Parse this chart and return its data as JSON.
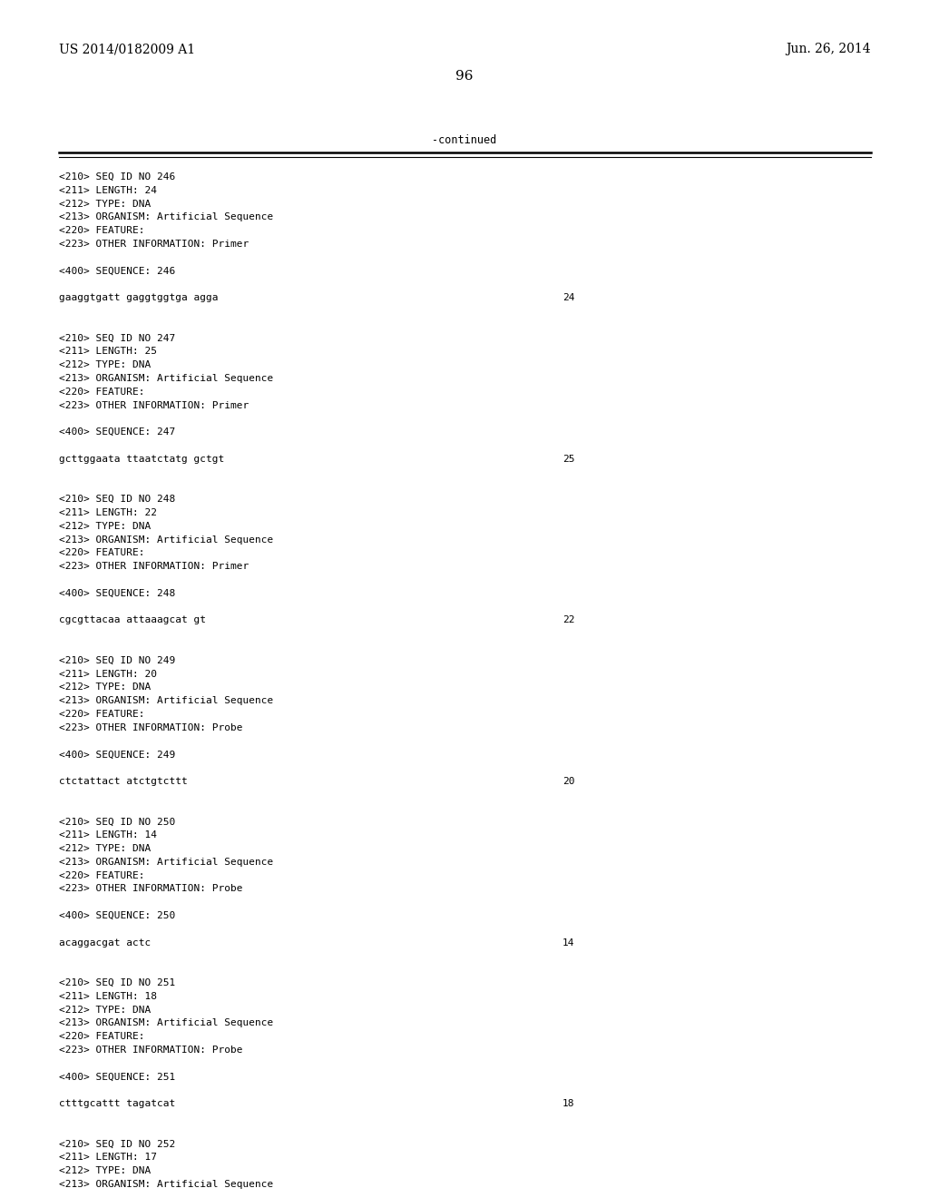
{
  "header_left": "US 2014/0182009 A1",
  "header_right": "Jun. 26, 2014",
  "page_number": "96",
  "continued_text": "-continued",
  "background_color": "#ffffff",
  "text_color": "#000000",
  "content_lines": [
    {
      "text": "<210> SEQ ID NO 246"
    },
    {
      "text": "<211> LENGTH: 24"
    },
    {
      "text": "<212> TYPE: DNA"
    },
    {
      "text": "<213> ORGANISM: Artificial Sequence"
    },
    {
      "text": "<220> FEATURE:"
    },
    {
      "text": "<223> OTHER INFORMATION: Primer"
    },
    {
      "text": ""
    },
    {
      "text": "<400> SEQUENCE: 246"
    },
    {
      "text": ""
    },
    {
      "text": "gaaggtgatt gaggtggtga agga",
      "number": "24"
    },
    {
      "text": ""
    },
    {
      "text": ""
    },
    {
      "text": "<210> SEQ ID NO 247"
    },
    {
      "text": "<211> LENGTH: 25"
    },
    {
      "text": "<212> TYPE: DNA"
    },
    {
      "text": "<213> ORGANISM: Artificial Sequence"
    },
    {
      "text": "<220> FEATURE:"
    },
    {
      "text": "<223> OTHER INFORMATION: Primer"
    },
    {
      "text": ""
    },
    {
      "text": "<400> SEQUENCE: 247"
    },
    {
      "text": ""
    },
    {
      "text": "gcttggaata ttaatctatg gctgt",
      "number": "25"
    },
    {
      "text": ""
    },
    {
      "text": ""
    },
    {
      "text": "<210> SEQ ID NO 248"
    },
    {
      "text": "<211> LENGTH: 22"
    },
    {
      "text": "<212> TYPE: DNA"
    },
    {
      "text": "<213> ORGANISM: Artificial Sequence"
    },
    {
      "text": "<220> FEATURE:"
    },
    {
      "text": "<223> OTHER INFORMATION: Primer"
    },
    {
      "text": ""
    },
    {
      "text": "<400> SEQUENCE: 248"
    },
    {
      "text": ""
    },
    {
      "text": "cgcgttacaa attaaagcat gt",
      "number": "22"
    },
    {
      "text": ""
    },
    {
      "text": ""
    },
    {
      "text": "<210> SEQ ID NO 249"
    },
    {
      "text": "<211> LENGTH: 20"
    },
    {
      "text": "<212> TYPE: DNA"
    },
    {
      "text": "<213> ORGANISM: Artificial Sequence"
    },
    {
      "text": "<220> FEATURE:"
    },
    {
      "text": "<223> OTHER INFORMATION: Probe"
    },
    {
      "text": ""
    },
    {
      "text": "<400> SEQUENCE: 249"
    },
    {
      "text": ""
    },
    {
      "text": "ctctattact atctgtcttt",
      "number": "20"
    },
    {
      "text": ""
    },
    {
      "text": ""
    },
    {
      "text": "<210> SEQ ID NO 250"
    },
    {
      "text": "<211> LENGTH: 14"
    },
    {
      "text": "<212> TYPE: DNA"
    },
    {
      "text": "<213> ORGANISM: Artificial Sequence"
    },
    {
      "text": "<220> FEATURE:"
    },
    {
      "text": "<223> OTHER INFORMATION: Probe"
    },
    {
      "text": ""
    },
    {
      "text": "<400> SEQUENCE: 250"
    },
    {
      "text": ""
    },
    {
      "text": "acaggacgat actc",
      "number": "14"
    },
    {
      "text": ""
    },
    {
      "text": ""
    },
    {
      "text": "<210> SEQ ID NO 251"
    },
    {
      "text": "<211> LENGTH: 18"
    },
    {
      "text": "<212> TYPE: DNA"
    },
    {
      "text": "<213> ORGANISM: Artificial Sequence"
    },
    {
      "text": "<220> FEATURE:"
    },
    {
      "text": "<223> OTHER INFORMATION: Probe"
    },
    {
      "text": ""
    },
    {
      "text": "<400> SEQUENCE: 251"
    },
    {
      "text": ""
    },
    {
      "text": "ctttgcattt tagatcat",
      "number": "18"
    },
    {
      "text": ""
    },
    {
      "text": ""
    },
    {
      "text": "<210> SEQ ID NO 252"
    },
    {
      "text": "<211> LENGTH: 17"
    },
    {
      "text": "<212> TYPE: DNA"
    },
    {
      "text": "<213> ORGANISM: Artificial Sequence"
    }
  ]
}
